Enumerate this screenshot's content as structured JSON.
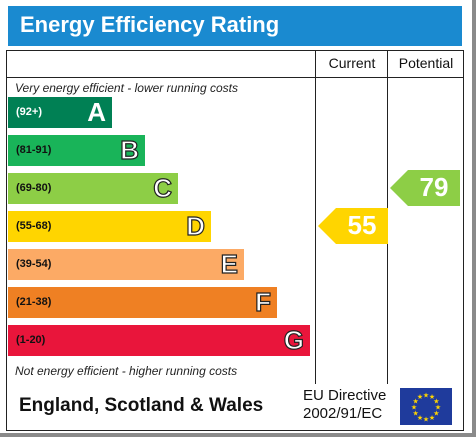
{
  "title": "Energy Efficiency Rating",
  "columns": {
    "current": "Current",
    "potential": "Potential"
  },
  "notes": {
    "top": "Very energy efficient - lower running costs",
    "bottom": "Not energy efficient - higher running costs"
  },
  "footer": {
    "country": "England, Scotland & Wales",
    "directive_line1": "EU Directive",
    "directive_line2": "2002/91/EC"
  },
  "colors": {
    "title_bar": "#1a8ad0",
    "band_A": "#008054",
    "band_B": "#19b459",
    "band_C": "#8dce46",
    "band_D": "#ffd500",
    "band_E": "#fcaa65",
    "band_F": "#ef8023",
    "band_G": "#e9153b",
    "eu_flag": "#1f3b9c",
    "eu_stars": "#ffd500"
  },
  "chart_data": {
    "type": "bar",
    "categories": [
      "A",
      "B",
      "C",
      "D",
      "E",
      "F",
      "G"
    ],
    "ranges": [
      "(92+)",
      "(81-91)",
      "(69-80)",
      "(55-68)",
      "(39-54)",
      "(21-38)",
      "(1-20)"
    ],
    "current": {
      "value": 55,
      "band": "D"
    },
    "potential": {
      "value": 79,
      "band": "C"
    }
  }
}
